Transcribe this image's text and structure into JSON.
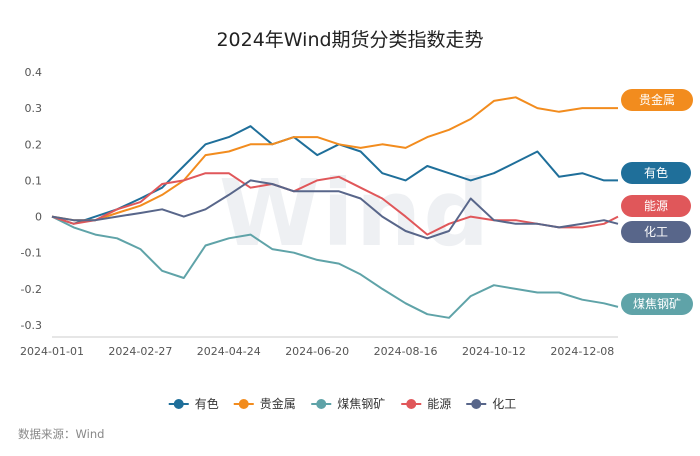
{
  "chart_data": {
    "type": "line",
    "title": "2024年Wind期货分类指数走势",
    "xlabel": "",
    "ylabel": "",
    "x_ticks": [
      "2024-01-01",
      "2024-02-27",
      "2024-04-24",
      "2024-06-20",
      "2024-08-16",
      "2024-10-12",
      "2024-12-08"
    ],
    "y_ticks": [
      "0.4",
      "0.3",
      "0.2",
      "0.1",
      "0",
      "-0.1",
      "-0.2",
      "-0.3"
    ],
    "ylim": [
      -0.3,
      0.4
    ],
    "grid": false,
    "legend_position": "bottom",
    "watermark": "Wind",
    "source": "数据来源：Wind",
    "x": [
      "2024-01-01",
      "2024-01-15",
      "2024-01-29",
      "2024-02-12",
      "2024-02-27",
      "2024-03-12",
      "2024-03-26",
      "2024-04-09",
      "2024-04-24",
      "2024-05-08",
      "2024-05-22",
      "2024-06-05",
      "2024-06-20",
      "2024-07-04",
      "2024-07-18",
      "2024-08-01",
      "2024-08-16",
      "2024-08-30",
      "2024-09-13",
      "2024-09-27",
      "2024-10-12",
      "2024-10-26",
      "2024-11-09",
      "2024-11-23",
      "2024-12-08",
      "2024-12-22",
      "2024-12-31"
    ],
    "series": [
      {
        "name": "有色",
        "color": "#1f6f9a",
        "end_label": "有色",
        "values": [
          0.0,
          -0.02,
          0.0,
          0.02,
          0.05,
          0.08,
          0.14,
          0.2,
          0.22,
          0.25,
          0.2,
          0.22,
          0.17,
          0.2,
          0.18,
          0.12,
          0.1,
          0.14,
          0.12,
          0.1,
          0.12,
          0.15,
          0.18,
          0.11,
          0.12,
          0.1,
          0.1
        ]
      },
      {
        "name": "贵金属",
        "color": "#f28c1e",
        "end_label": "贵金属",
        "values": [
          0.0,
          -0.01,
          -0.01,
          0.01,
          0.03,
          0.06,
          0.1,
          0.17,
          0.18,
          0.2,
          0.2,
          0.22,
          0.22,
          0.2,
          0.19,
          0.2,
          0.19,
          0.22,
          0.24,
          0.27,
          0.32,
          0.33,
          0.3,
          0.29,
          0.3,
          0.3,
          0.3
        ]
      },
      {
        "name": "煤焦钢矿",
        "color": "#5fa3a8",
        "end_label": "煤焦钢矿",
        "values": [
          0.0,
          -0.03,
          -0.05,
          -0.06,
          -0.09,
          -0.15,
          -0.17,
          -0.08,
          -0.06,
          -0.05,
          -0.09,
          -0.1,
          -0.12,
          -0.13,
          -0.16,
          -0.2,
          -0.24,
          -0.27,
          -0.28,
          -0.22,
          -0.19,
          -0.2,
          -0.21,
          -0.21,
          -0.23,
          -0.24,
          -0.25
        ]
      },
      {
        "name": "能源",
        "color": "#e0575a",
        "end_label": "能源",
        "values": [
          0.0,
          -0.02,
          -0.01,
          0.02,
          0.04,
          0.09,
          0.1,
          0.12,
          0.12,
          0.08,
          0.09,
          0.07,
          0.1,
          0.11,
          0.08,
          0.05,
          0.0,
          -0.05,
          -0.02,
          0.0,
          -0.01,
          -0.01,
          -0.02,
          -0.03,
          -0.03,
          -0.02,
          0.0
        ]
      },
      {
        "name": "化工",
        "color": "#58668a",
        "end_label": "化工",
        "values": [
          0.0,
          -0.01,
          -0.01,
          0.0,
          0.01,
          0.02,
          0.0,
          0.02,
          0.06,
          0.1,
          0.09,
          0.07,
          0.07,
          0.07,
          0.05,
          0.0,
          -0.04,
          -0.06,
          -0.04,
          0.05,
          -0.01,
          -0.02,
          -0.02,
          -0.03,
          -0.02,
          -0.01,
          -0.02
        ]
      }
    ]
  }
}
